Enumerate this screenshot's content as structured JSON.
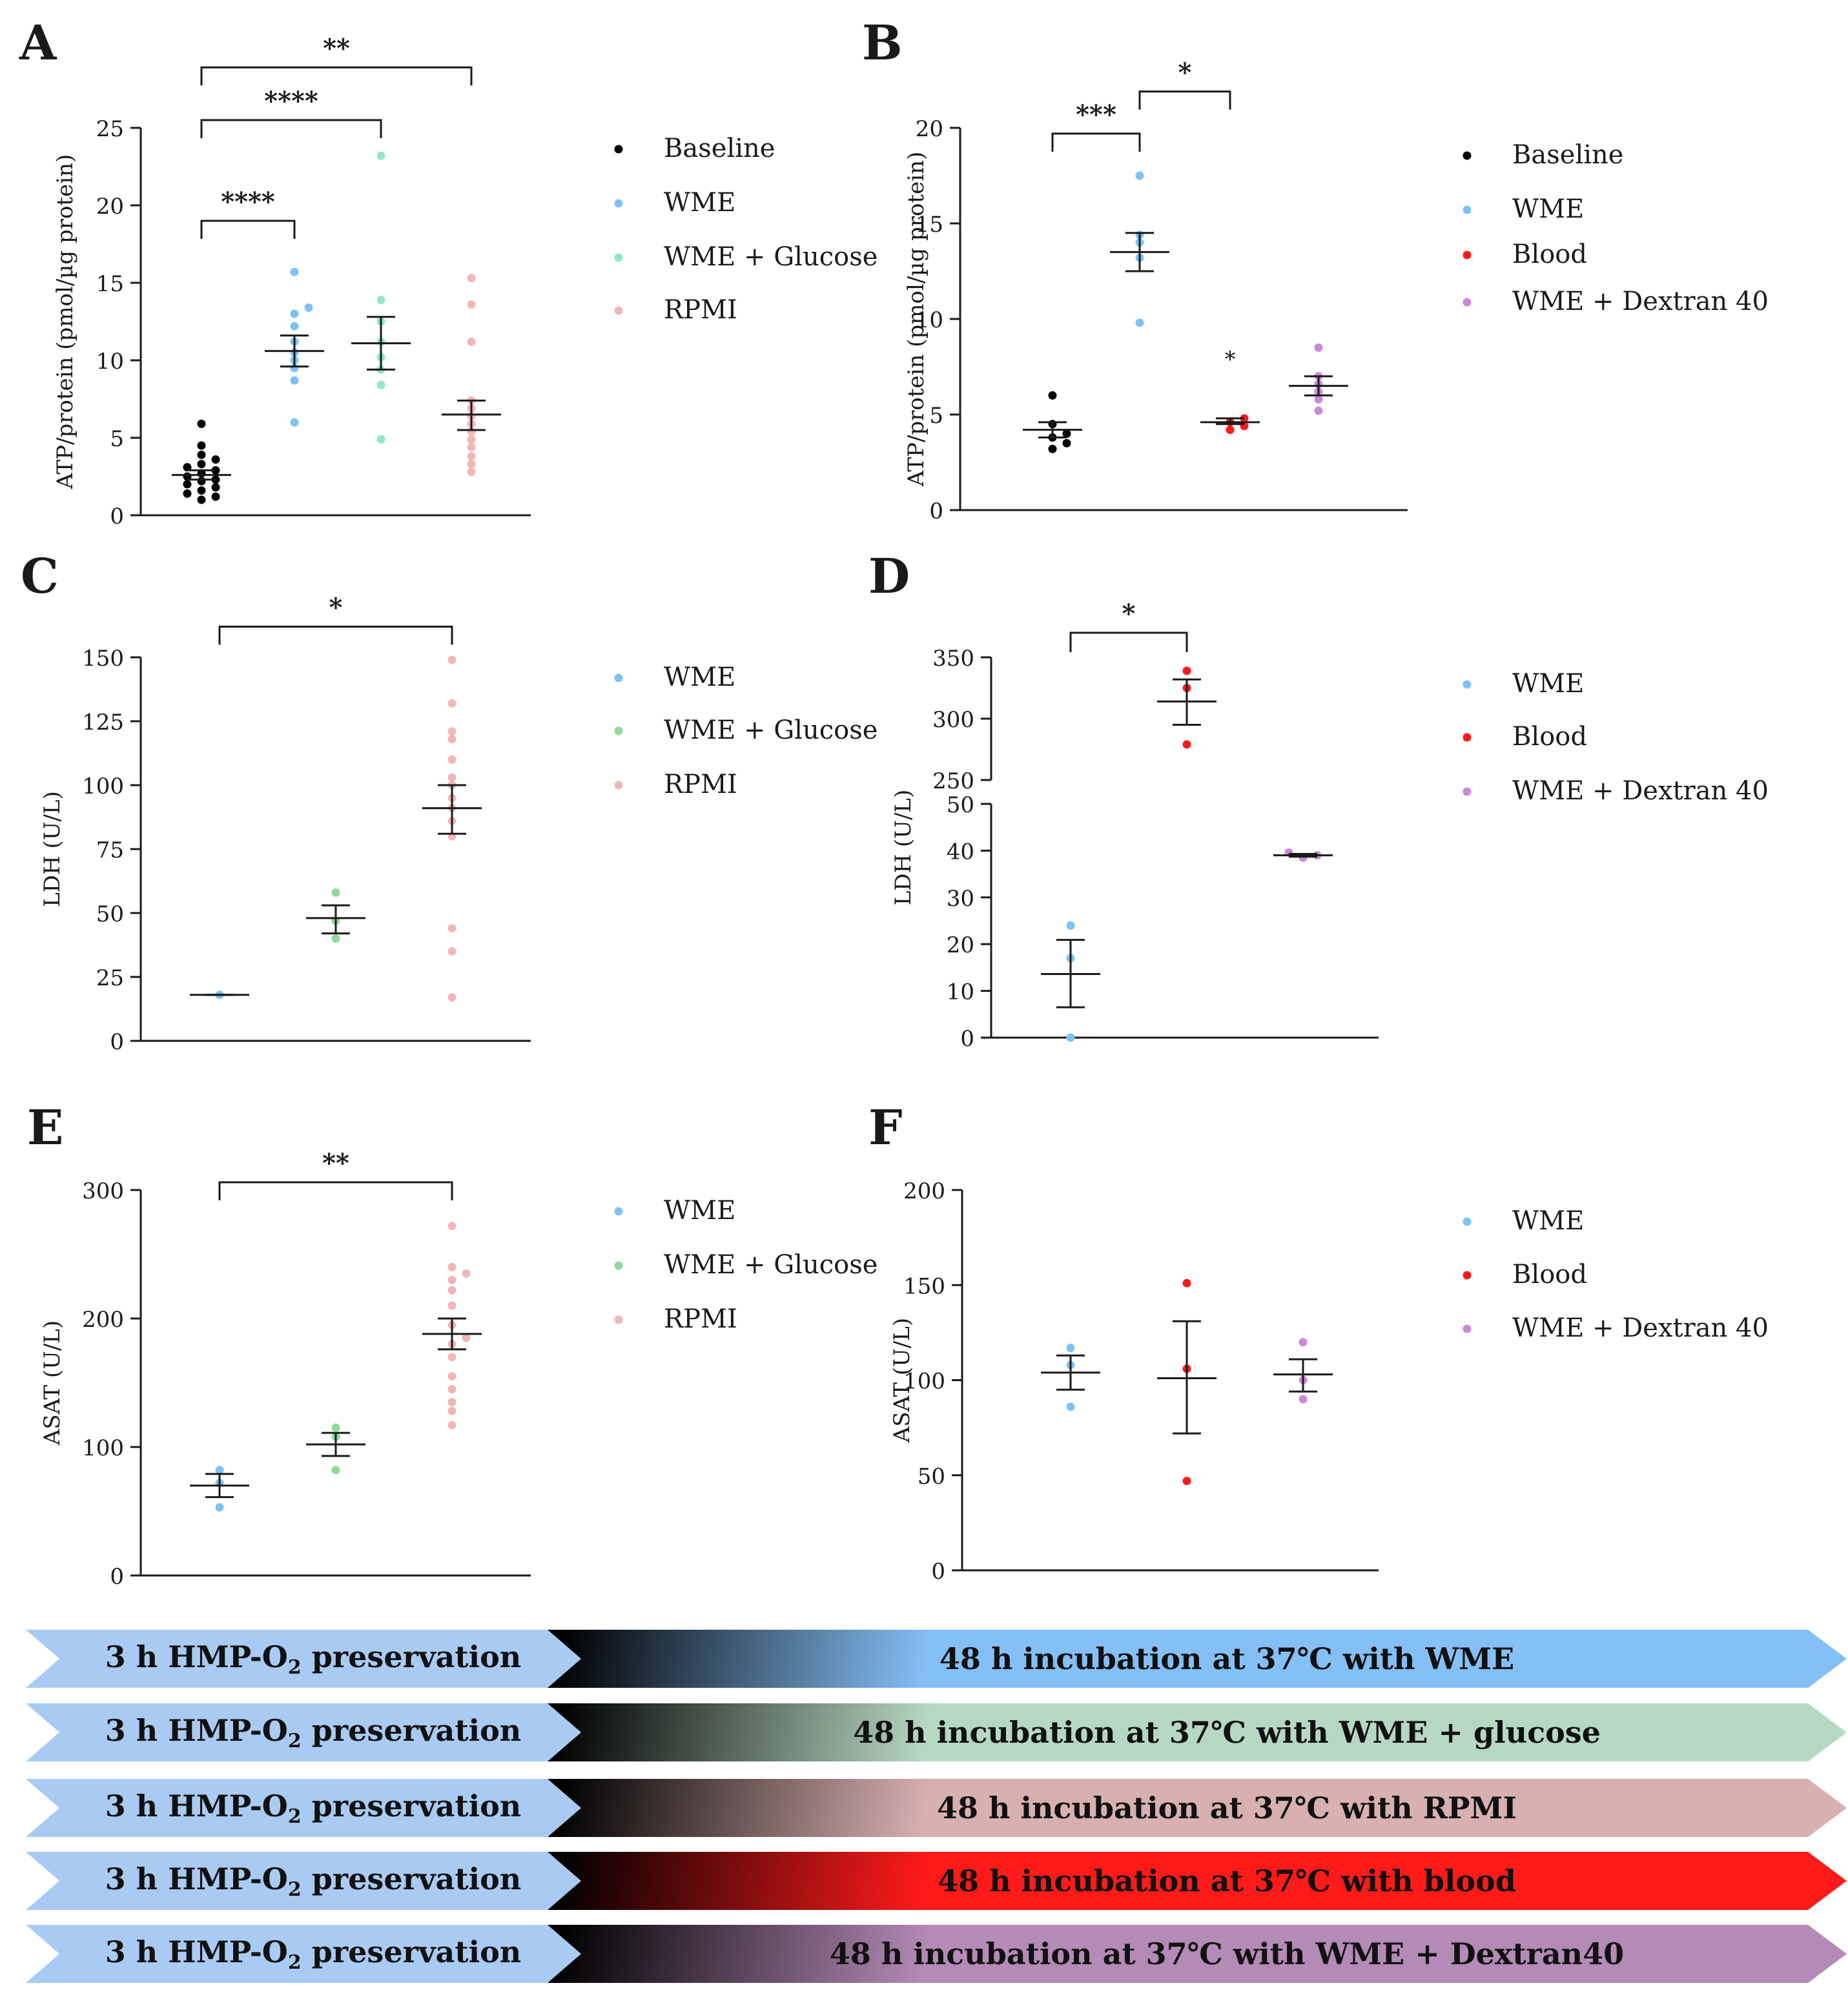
{
  "colors": {
    "black": "#000000",
    "blue": "#7ec2f4",
    "teal": "#8ee8c9",
    "green": "#8fd99b",
    "pink": "#f0b7b7",
    "red": "#ff1a1a",
    "purple": "#c98bd6"
  },
  "chart_data": [
    {
      "panel": "A",
      "type": "scatter",
      "ylabel": "ATP/protein (pmol/µg protein)",
      "ylim": [
        0,
        25
      ],
      "yticks": [
        "0",
        "5",
        "10",
        "15",
        "20",
        "25"
      ],
      "legend": [
        "Baseline",
        "WME",
        "WME + Glucose",
        "RPMI"
      ],
      "series": [
        {
          "name": "Baseline",
          "color": "black",
          "mean": 2.6,
          "sem_low": 2.3,
          "sem_high": 2.9,
          "values": [
            1.0,
            1.2,
            1.4,
            1.6,
            1.8,
            2.0,
            2.2,
            2.3,
            2.5,
            2.7,
            2.9,
            3.1,
            3.3,
            3.6,
            3.9,
            4.5,
            5.9
          ]
        },
        {
          "name": "WME",
          "color": "blue",
          "mean": 10.6,
          "sem_low": 9.6,
          "sem_high": 11.6,
          "values": [
            6.0,
            8.7,
            9.5,
            10.0,
            10.5,
            11.2,
            12.2,
            13.0,
            13.4,
            15.7
          ]
        },
        {
          "name": "WME + Glucose",
          "color": "teal",
          "mean": 11.1,
          "sem_low": 9.4,
          "sem_high": 12.8,
          "values": [
            4.9,
            8.4,
            9.4,
            10.2,
            11.2,
            12.5,
            13.9,
            23.2
          ]
        },
        {
          "name": "RPMI",
          "color": "pink",
          "mean": 6.5,
          "sem_low": 5.5,
          "sem_high": 7.4,
          "values": [
            2.8,
            3.3,
            3.8,
            4.4,
            4.9,
            5.4,
            5.9,
            6.4,
            6.9,
            7.4,
            11.2,
            13.6,
            15.3
          ]
        }
      ],
      "significance": [
        {
          "from": 0,
          "to": 1,
          "label": "****",
          "level": 19
        },
        {
          "from": 0,
          "to": 2,
          "label": "****",
          "level": 25.5
        },
        {
          "from": 0,
          "to": 3,
          "label": "**",
          "level": 28.9
        }
      ]
    },
    {
      "panel": "B",
      "type": "scatter",
      "ylabel": "ATP/protein (pmol/µg protein)",
      "ylim": [
        0,
        20
      ],
      "yticks": [
        "0",
        "5",
        "10",
        "15",
        "20"
      ],
      "legend": [
        "Baseline",
        "WME",
        "Blood",
        "WME + Dextran 40"
      ],
      "series": [
        {
          "name": "Baseline",
          "color": "black",
          "mean": 4.2,
          "sem_low": 3.8,
          "sem_high": 4.6,
          "values": [
            3.2,
            3.5,
            3.8,
            4.0,
            4.5,
            6.0
          ]
        },
        {
          "name": "WME",
          "color": "blue",
          "mean": 13.5,
          "sem_low": 12.5,
          "sem_high": 14.5,
          "values": [
            9.8,
            13.2,
            14.0,
            14.4,
            17.5
          ]
        },
        {
          "name": "Blood",
          "color": "red",
          "mean": 4.6,
          "sem_low": 4.5,
          "sem_high": 4.8,
          "values": [
            4.2,
            4.4,
            4.6,
            4.8
          ]
        },
        {
          "name": "WME + Dextran 40",
          "color": "purple",
          "mean": 6.5,
          "sem_low": 6.0,
          "sem_high": 7.0,
          "values": [
            5.2,
            5.8,
            6.2,
            6.6,
            7.0,
            8.5
          ]
        }
      ],
      "significance": [
        {
          "from": 0,
          "to": 1,
          "label": "***",
          "level": 19.7
        },
        {
          "from": 1,
          "to": 2,
          "label": "*",
          "level": 21.9
        }
      ],
      "point_annotations": [
        {
          "series": 2,
          "label": "*",
          "y": 7.9
        }
      ]
    },
    {
      "panel": "C",
      "type": "scatter",
      "ylabel": "LDH (U/L)",
      "ylim": [
        0,
        150
      ],
      "yticks": [
        "0",
        "25",
        "50",
        "75",
        "100",
        "125",
        "150"
      ],
      "legend": [
        "WME",
        "WME + Glucose",
        "RPMI"
      ],
      "series": [
        {
          "name": "WME",
          "color": "blue",
          "mean": 18,
          "sem_low": 18,
          "sem_high": 18,
          "values": [
            18
          ]
        },
        {
          "name": "WME + Glucose",
          "color": "green",
          "mean": 48,
          "sem_low": 42,
          "sem_high": 53,
          "values": [
            40,
            47,
            58
          ]
        },
        {
          "name": "RPMI",
          "color": "pink",
          "mean": 91,
          "sem_low": 81,
          "sem_high": 100,
          "values": [
            17,
            35,
            44,
            80,
            86,
            91,
            95,
            100,
            103,
            110,
            118,
            121,
            132,
            149
          ]
        }
      ],
      "significance": [
        {
          "from": 0,
          "to": 2,
          "label": "*",
          "level": 162
        }
      ]
    },
    {
      "panel": "D",
      "type": "scatter",
      "ylabel": "LDH (U/L)",
      "broken_axis": true,
      "ylim_lower": [
        0,
        50
      ],
      "ylim_upper": [
        250,
        350
      ],
      "yticks_lower": [
        "0",
        "10",
        "20",
        "30",
        "40",
        "50"
      ],
      "yticks_upper": [
        "250",
        "300",
        "350"
      ],
      "legend": [
        "WME",
        "Blood",
        "WME + Dextran 40"
      ],
      "series": [
        {
          "name": "WME",
          "color": "blue",
          "mean": 13.6,
          "sem_low": 6.5,
          "sem_high": 20.9,
          "values": [
            0,
            17,
            24
          ]
        },
        {
          "name": "Blood",
          "color": "red",
          "mean": 314,
          "sem_low": 295,
          "sem_high": 332,
          "values": [
            279,
            325,
            339
          ]
        },
        {
          "name": "WME + Dextran 40",
          "color": "purple",
          "mean": 39,
          "sem_low": 38.7,
          "sem_high": 39.3,
          "values": [
            38.5,
            39,
            39.6
          ]
        }
      ],
      "significance": [
        {
          "from": 0,
          "to": 1,
          "label": "*",
          "level": 370
        }
      ]
    },
    {
      "panel": "E",
      "type": "scatter",
      "ylabel": "ASAT (U/L)",
      "ylim": [
        0,
        300
      ],
      "yticks": [
        "0",
        "100",
        "200",
        "300"
      ],
      "legend": [
        "WME",
        "WME + Glucose",
        "RPMI"
      ],
      "series": [
        {
          "name": "WME",
          "color": "blue",
          "mean": 70,
          "sem_low": 61,
          "sem_high": 79,
          "values": [
            53,
            72,
            82
          ]
        },
        {
          "name": "WME + Glucose",
          "color": "green",
          "mean": 102,
          "sem_low": 93,
          "sem_high": 111,
          "values": [
            82,
            108,
            115
          ]
        },
        {
          "name": "RPMI",
          "color": "pink",
          "mean": 188,
          "sem_low": 176,
          "sem_high": 200,
          "values": [
            117,
            128,
            135,
            145,
            155,
            170,
            180,
            185,
            195,
            210,
            222,
            230,
            235,
            240,
            272
          ]
        }
      ],
      "significance": [
        {
          "from": 0,
          "to": 2,
          "label": "**",
          "level": 306
        }
      ]
    },
    {
      "panel": "F",
      "type": "scatter",
      "ylabel": "ASAT (U/L)",
      "ylim": [
        0,
        200
      ],
      "yticks": [
        "0",
        "50",
        "100",
        "150",
        "200"
      ],
      "legend": [
        "WME",
        "Blood",
        "WME + Dextran 40"
      ],
      "series": [
        {
          "name": "WME",
          "color": "blue",
          "mean": 104,
          "sem_low": 95,
          "sem_high": 113,
          "values": [
            86,
            108,
            117
          ]
        },
        {
          "name": "Blood",
          "color": "red",
          "mean": 101,
          "sem_low": 72,
          "sem_high": 131,
          "values": [
            47,
            106,
            151
          ]
        },
        {
          "name": "WME + Dextran 40",
          "color": "purple",
          "mean": 103,
          "sem_low": 94,
          "sem_high": 111,
          "values": [
            90,
            100,
            120
          ]
        }
      ],
      "significance": []
    }
  ],
  "protocol": {
    "preservation_label": "3 h HMP-O",
    "preservation_sub": "2",
    "preservation_suffix": " preservation",
    "rows": [
      {
        "incubation": "48 h incubation at 37℃ with WME",
        "color": "#84bff5"
      },
      {
        "incubation": "48 h incubation at 37℃ with WME + glucose",
        "color": "#b6d8c2"
      },
      {
        "incubation": "48 h incubation at 37℃ with RPMI",
        "color": "#d8b0b0"
      },
      {
        "incubation": "48 h incubation at 37℃ with blood",
        "color": "#ff1a1a"
      },
      {
        "incubation": "48 h incubation at 37℃ with WME + Dextran40",
        "color": "#b48ab6"
      }
    ]
  }
}
